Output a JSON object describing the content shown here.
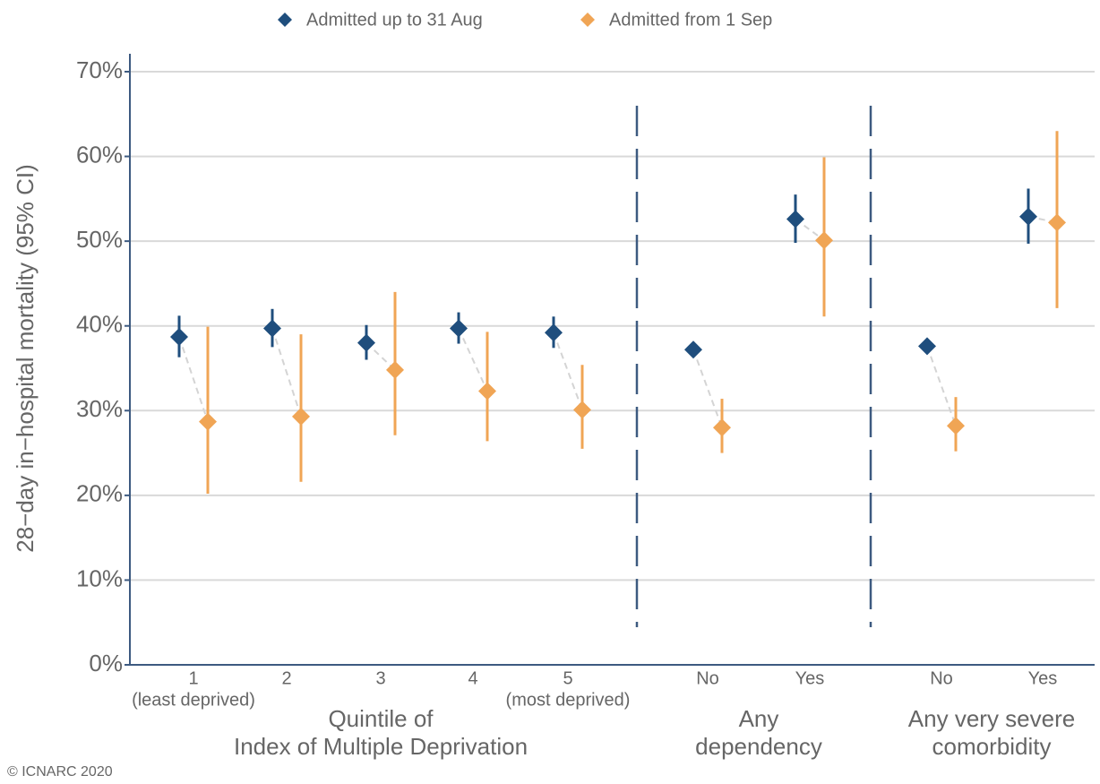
{
  "chart_data": {
    "type": "dot-errorbar",
    "y_label": "28−day in−hospital mortality (95% CI)",
    "ylim": [
      0,
      70
    ],
    "yticks": [
      {
        "value": 0,
        "label": "0%"
      },
      {
        "value": 10,
        "label": "10%"
      },
      {
        "value": 20,
        "label": "20%"
      },
      {
        "value": 30,
        "label": "30%"
      },
      {
        "value": 40,
        "label": "40%"
      },
      {
        "value": 50,
        "label": "50%"
      },
      {
        "value": 60,
        "label": "60%"
      },
      {
        "value": 70,
        "label": "70%"
      }
    ],
    "grid": true,
    "legend": "top",
    "groups": [
      {
        "title": [
          "Quintile of",
          "Index of Multiple Deprivation"
        ],
        "categories": [
          "1",
          "2",
          "3",
          "4",
          "5"
        ],
        "notes": [
          "(least deprived)",
          null,
          null,
          null,
          "(most deprived)"
        ]
      },
      {
        "title": [
          "Any",
          "dependency"
        ],
        "categories": [
          "No",
          "Yes"
        ]
      },
      {
        "title": [
          "Any very severe",
          "comorbidity"
        ],
        "categories": [
          "No",
          "Yes"
        ]
      }
    ],
    "series": [
      {
        "name": "Admitted up to 31 Aug",
        "color": "#1f4e7d",
        "values": [
          38.7,
          39.7,
          38.0,
          39.7,
          39.2,
          37.2,
          52.6,
          37.6,
          52.9
        ],
        "lower": [
          36.3,
          37.5,
          36.0,
          37.9,
          37.4,
          36.8,
          49.8,
          37.2,
          49.7
        ],
        "upper": [
          41.2,
          42.0,
          40.1,
          41.6,
          41.1,
          37.6,
          55.5,
          38.0,
          56.2
        ]
      },
      {
        "name": "Admitted from 1 Sep",
        "color": "#f0a555",
        "values": [
          28.7,
          29.3,
          34.8,
          32.3,
          30.1,
          28.0,
          50.1,
          28.2,
          52.2
        ],
        "lower": [
          20.2,
          21.6,
          27.1,
          26.4,
          25.5,
          25.0,
          41.1,
          25.2,
          42.1
        ],
        "upper": [
          39.9,
          39.0,
          44.0,
          39.3,
          35.4,
          31.4,
          59.9,
          31.6,
          63.0
        ]
      }
    ],
    "footnote": "© ICNARC 2020"
  }
}
